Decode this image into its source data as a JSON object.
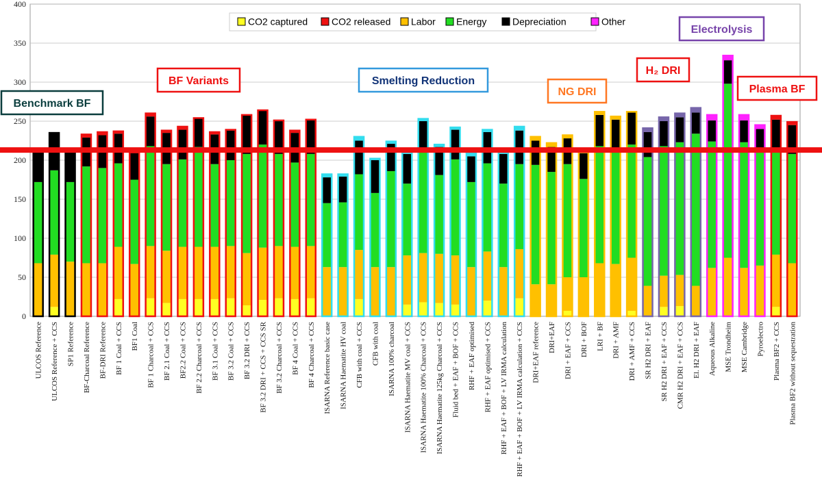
{
  "chart_data": {
    "type": "bar",
    "stacked": true,
    "ylim": [
      0,
      400
    ],
    "yticks": [
      0,
      50,
      100,
      150,
      200,
      250,
      300,
      350,
      400
    ],
    "grid": "horizontal",
    "legend_position": "top-center",
    "reference_line": {
      "value": 213,
      "color": "#ee1111"
    },
    "series_order": [
      "co2_captured",
      "labor",
      "energy",
      "depreciation",
      "other"
    ],
    "series": [
      {
        "key": "co2_captured",
        "name": "CO2 captured",
        "color": "#ffff22"
      },
      {
        "key": "co2_released",
        "name": "CO2 released",
        "color": "#ee1111"
      },
      {
        "key": "labor",
        "name": "Labor",
        "color": "#ffc000"
      },
      {
        "key": "energy",
        "name": "Energy",
        "color": "#22dd22"
      },
      {
        "key": "depreciation",
        "name": "Depreciation",
        "color": "#000000"
      },
      {
        "key": "other",
        "name": "Other",
        "color": "#ff22ff"
      }
    ],
    "group_styles": {
      "benchmark": {
        "border": "#000000"
      },
      "bf": {
        "border": "#ee1111"
      },
      "sr": {
        "border": "#33ddee"
      },
      "ng": {
        "border": "#ffc000"
      },
      "h2": {
        "border": "#7766aa"
      },
      "el": {
        "border": "#ff22ff"
      },
      "plasma": {
        "border": "#ee1111"
      }
    },
    "categories": [
      "ULCOS Reference",
      "ULCOS Reference + CCS",
      "SP1 Reference",
      "BF-Charcoal Reference",
      "BF-DRI Reference",
      "BF 1 Coal + CCS",
      "BF1 Coal",
      "BF 1 Charcoal + CCS",
      "BF 2.1 Coal + CCS",
      "BF2.2 Coal + CCS",
      "BF 2.2 Charcoal + CCS",
      "BF 3.1 Coal + CCS",
      "BF 3.2 Coal + CCS",
      "BF 3.2 DRI + CCS",
      "BF 3.2 DRI + CCS + CCS SR",
      "BF 3.2 Charcoal + CCS",
      "BF 4 Coal + CCS",
      "BF 4 Charcoal + CCS",
      "ISARNA Reference basic case",
      "ISARNA Haematite HV coal",
      "CFB with coal + CCS",
      "CFB with coal",
      "ISARNA 100% charcoal",
      "ISARNA Haematite MV coal + CCS",
      "ISARNA Haematite 100% Charcoal + CCS",
      "ISARNA Haematite 125kg Charcoal + CCS",
      "Fluid bed + EAF + BOF + CCS",
      "RHF + EAF optimised",
      "RHF + EAF optimised + CCS",
      "RHF + EAF + BOF + LV IRMA calculation",
      "RHF + EAF + BOF + LV IRMA calculation + CCS",
      "DRI+EAF reference",
      "DRI+EAF",
      "DRI + EAF + CCS",
      "DRI + BOF",
      "LRI + BF",
      "DRI + AMF",
      "DRI + AMF + CCS",
      "SR H2 DRI + EAF",
      "SR H2 DRI + EAF + CCS",
      "CMR H2 DRI + EAF + CCS",
      "El. H2 DRI + EAF",
      "Aqueous Alkaline",
      "MSE Trondheim",
      "MSE Cambridge",
      "Pyroelectro",
      "Plasma BF2 + CCS",
      "Plasma BF2 without sequestration"
    ],
    "bars": [
      {
        "group": "benchmark",
        "co2_captured": 0,
        "labor": 68,
        "energy": 104,
        "depreciation": 38,
        "other": 0,
        "total": 210
      },
      {
        "group": "benchmark",
        "co2_captured": 12,
        "labor": 67,
        "energy": 108,
        "depreciation": 48,
        "other": 0,
        "total": 235
      },
      {
        "group": "benchmark",
        "co2_captured": 0,
        "labor": 70,
        "energy": 102,
        "depreciation": 38,
        "other": 0,
        "total": 210
      },
      {
        "group": "bf",
        "co2_captured": 0,
        "labor": 68,
        "energy": 124,
        "depreciation": 37,
        "other": 0,
        "total": 233
      },
      {
        "group": "bf",
        "co2_captured": 0,
        "labor": 68,
        "energy": 122,
        "depreciation": 42,
        "other": 0,
        "total": 236
      },
      {
        "group": "bf",
        "co2_captured": 22,
        "labor": 67,
        "energy": 107,
        "depreciation": 38,
        "other": 0,
        "total": 237
      },
      {
        "group": "bf",
        "co2_captured": 0,
        "labor": 67,
        "energy": 108,
        "depreciation": 35,
        "other": 0,
        "total": 210
      },
      {
        "group": "bf",
        "co2_captured": 23,
        "labor": 67,
        "energy": 128,
        "depreciation": 38,
        "other": 0,
        "total": 260
      },
      {
        "group": "bf",
        "co2_captured": 17,
        "labor": 67,
        "energy": 111,
        "depreciation": 40,
        "other": 0,
        "total": 238
      },
      {
        "group": "bf",
        "co2_captured": 22,
        "labor": 67,
        "energy": 112,
        "depreciation": 38,
        "other": 0,
        "total": 243
      },
      {
        "group": "bf",
        "co2_captured": 22,
        "labor": 67,
        "energy": 128,
        "depreciation": 37,
        "other": 0,
        "total": 254
      },
      {
        "group": "bf",
        "co2_captured": 22,
        "labor": 67,
        "energy": 106,
        "depreciation": 38,
        "other": 0,
        "total": 236
      },
      {
        "group": "bf",
        "co2_captured": 23,
        "labor": 67,
        "energy": 110,
        "depreciation": 38,
        "other": 0,
        "total": 239
      },
      {
        "group": "bf",
        "co2_captured": 14,
        "labor": 67,
        "energy": 127,
        "depreciation": 50,
        "other": 0,
        "total": 258
      },
      {
        "group": "bf",
        "co2_captured": 21,
        "labor": 67,
        "energy": 132,
        "depreciation": 44,
        "other": 0,
        "total": 264
      },
      {
        "group": "bf",
        "co2_captured": 23,
        "labor": 67,
        "energy": 118,
        "depreciation": 43,
        "other": 0,
        "total": 251
      },
      {
        "group": "bf",
        "co2_captured": 22,
        "labor": 67,
        "energy": 108,
        "depreciation": 38,
        "other": 0,
        "total": 238
      },
      {
        "group": "bf",
        "co2_captured": 23,
        "labor": 67,
        "energy": 118,
        "depreciation": 43,
        "other": 0,
        "total": 252
      },
      {
        "group": "sr",
        "co2_captured": 0,
        "labor": 63,
        "energy": 82,
        "depreciation": 33,
        "other": 0,
        "total": 182
      },
      {
        "group": "sr",
        "co2_captured": 0,
        "labor": 63,
        "energy": 83,
        "depreciation": 33,
        "other": 0,
        "total": 182
      },
      {
        "group": "sr",
        "co2_captured": 22,
        "labor": 63,
        "energy": 97,
        "depreciation": 43,
        "other": 0,
        "total": 230
      },
      {
        "group": "sr",
        "co2_captured": 0,
        "labor": 63,
        "energy": 95,
        "depreciation": 42,
        "other": 0,
        "total": 202
      },
      {
        "group": "sr",
        "co2_captured": 0,
        "labor": 63,
        "energy": 123,
        "depreciation": 35,
        "other": 0,
        "total": 224
      },
      {
        "group": "sr",
        "co2_captured": 15,
        "labor": 63,
        "energy": 92,
        "depreciation": 38,
        "other": 0,
        "total": 210
      },
      {
        "group": "sr",
        "co2_captured": 18,
        "labor": 63,
        "energy": 131,
        "depreciation": 38,
        "other": 0,
        "total": 253
      },
      {
        "group": "sr",
        "co2_captured": 17,
        "labor": 63,
        "energy": 101,
        "depreciation": 36,
        "other": 0,
        "total": 220
      },
      {
        "group": "sr",
        "co2_captured": 15,
        "labor": 63,
        "energy": 123,
        "depreciation": 38,
        "other": 0,
        "total": 242
      },
      {
        "group": "sr",
        "co2_captured": 0,
        "labor": 63,
        "energy": 109,
        "depreciation": 33,
        "other": 0,
        "total": 210
      },
      {
        "group": "sr",
        "co2_captured": 20,
        "labor": 63,
        "energy": 113,
        "depreciation": 40,
        "other": 0,
        "total": 239
      },
      {
        "group": "sr",
        "co2_captured": 0,
        "labor": 63,
        "energy": 107,
        "depreciation": 38,
        "other": 0,
        "total": 210
      },
      {
        "group": "sr",
        "co2_captured": 23,
        "labor": 63,
        "energy": 109,
        "depreciation": 43,
        "other": 0,
        "total": 243
      },
      {
        "group": "ng",
        "co2_captured": 0,
        "labor": 41,
        "energy": 153,
        "depreciation": 31,
        "other": 0,
        "total": 230
      },
      {
        "group": "ng",
        "co2_captured": 0,
        "labor": 41,
        "energy": 144,
        "depreciation": 32,
        "other": 0,
        "total": 222
      },
      {
        "group": "ng",
        "co2_captured": 7,
        "labor": 43,
        "energy": 145,
        "depreciation": 33,
        "other": 0,
        "total": 232
      },
      {
        "group": "ng",
        "co2_captured": 0,
        "labor": 50,
        "energy": 126,
        "depreciation": 33,
        "other": 0,
        "total": 212
      },
      {
        "group": "ng",
        "co2_captured": 0,
        "labor": 68,
        "energy": 150,
        "depreciation": 40,
        "other": 0,
        "total": 262
      },
      {
        "group": "ng",
        "co2_captured": 0,
        "labor": 67,
        "energy": 144,
        "depreciation": 41,
        "other": 0,
        "total": 256
      },
      {
        "group": "ng",
        "co2_captured": 7,
        "labor": 68,
        "energy": 145,
        "depreciation": 42,
        "other": 0,
        "total": 262
      },
      {
        "group": "h2",
        "co2_captured": 0,
        "labor": 39,
        "energy": 165,
        "depreciation": 32,
        "other": 0,
        "total": 241
      },
      {
        "group": "h2",
        "co2_captured": 12,
        "labor": 40,
        "energy": 166,
        "depreciation": 32,
        "other": 0,
        "total": 255
      },
      {
        "group": "h2",
        "co2_captured": 13,
        "labor": 40,
        "energy": 170,
        "depreciation": 32,
        "other": 0,
        "total": 260
      },
      {
        "group": "h2",
        "co2_captured": 0,
        "labor": 39,
        "energy": 195,
        "depreciation": 27,
        "other": 0,
        "total": 267
      },
      {
        "group": "el",
        "co2_captured": 0,
        "labor": 62,
        "energy": 162,
        "depreciation": 27,
        "other": 0,
        "total": 258
      },
      {
        "group": "el",
        "co2_captured": 0,
        "labor": 75,
        "energy": 223,
        "depreciation": 30,
        "other": 0,
        "total": 334
      },
      {
        "group": "el",
        "co2_captured": 0,
        "labor": 62,
        "energy": 161,
        "depreciation": 28,
        "other": 0,
        "total": 258
      },
      {
        "group": "el",
        "co2_captured": 0,
        "labor": 65,
        "energy": 150,
        "depreciation": 25,
        "other": 0,
        "total": 245
      },
      {
        "group": "plasma",
        "co2_captured": 12,
        "labor": 67,
        "energy": 133,
        "depreciation": 40,
        "other": 0,
        "total": 257
      },
      {
        "group": "plasma",
        "co2_captured": 0,
        "labor": 68,
        "energy": 140,
        "depreciation": 37,
        "other": 0,
        "total": 249
      }
    ],
    "annotations": [
      {
        "text": "Benchmark BF",
        "color": "#0a3d3d",
        "border": "#0a3d3d",
        "y": 270
      },
      {
        "text": "BF Variants",
        "color": "#ee1111",
        "border": "#ee1111",
        "y": 300
      },
      {
        "text": "Smelting Reduction",
        "color": "#113377",
        "border": "#3399dd",
        "y": 300
      },
      {
        "text": "NG DRI",
        "color": "#ff7722",
        "border": "#ff7722",
        "y": 287
      },
      {
        "text": "H₂ DRI",
        "color": "#ee1111",
        "border": "#ee1111",
        "y": 315
      },
      {
        "text": "Electrolysis",
        "color": "#7744aa",
        "border": "#7744aa",
        "y": 365
      },
      {
        "text": "Plasma BF",
        "color": "#ee1111",
        "border": "#ee1111",
        "y": 290
      }
    ]
  }
}
